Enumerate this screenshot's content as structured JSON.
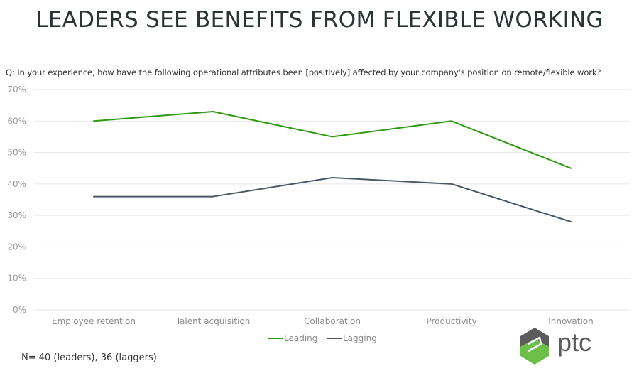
{
  "title": "LEADERS SEE BENEFITS FROM FLEXIBLE WORKING",
  "question": "Q: In your experience, how have the following operational attributes been [positively] affected by your company's position on remote/flexible work?",
  "footnote": "N= 40 (leaders), 36 (laggers)",
  "logo": {
    "text": "ptc",
    "colors": {
      "top": "#5c5c5c",
      "bottom": "#6cc04a",
      "text": "#5a5a5a"
    }
  },
  "chart_data": {
    "type": "line",
    "title": "LEADERS SEE BENEFITS FROM FLEXIBLE WORKING",
    "xlabel": "",
    "ylabel": "",
    "categories": [
      "Employee retention",
      "Talent acquisition",
      "Collaboration",
      "Productivity",
      "Innovation"
    ],
    "y_ticks": [
      "0%",
      "10%",
      "20%",
      "30%",
      "40%",
      "50%",
      "60%",
      "70%"
    ],
    "ylim": [
      0,
      70
    ],
    "grid": true,
    "legend_position": "bottom",
    "series": [
      {
        "name": "Leading",
        "color": "#2e9a12",
        "values": [
          60,
          63,
          55,
          60,
          45
        ]
      },
      {
        "name": "Lagging",
        "color": "#4a5866",
        "values": [
          36,
          36,
          42,
          40,
          28
        ]
      }
    ]
  }
}
